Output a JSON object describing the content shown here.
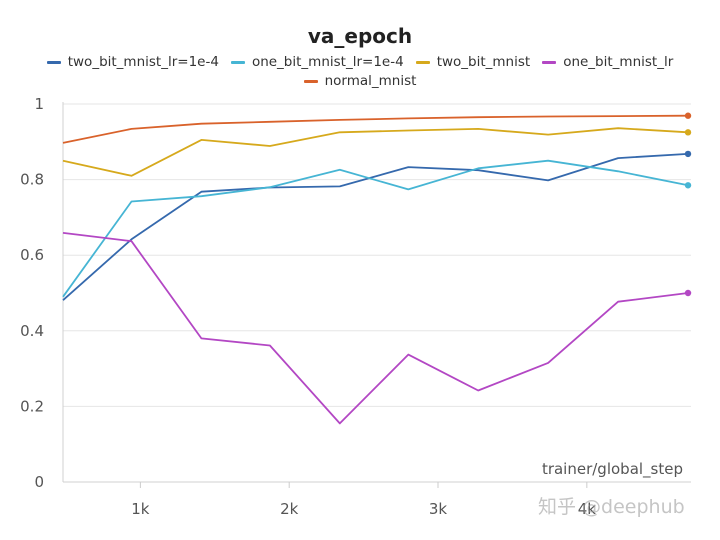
{
  "chart_data": {
    "type": "line",
    "title": "va_epoch",
    "xlabel": "trainer/global_step",
    "ylabel": "",
    "xlim": [
      480,
      4700
    ],
    "ylim": [
      0,
      1
    ],
    "x_tick_values": [
      1000,
      2000,
      3000,
      4000
    ],
    "x_tick_labels": [
      "1k",
      "2k",
      "3k",
      "4k"
    ],
    "y_tick_values": [
      0,
      0.2,
      0.4,
      0.6,
      0.8,
      1
    ],
    "y_tick_labels": [
      "0",
      "0.2",
      "0.4",
      "0.6",
      "0.8",
      "1"
    ],
    "grid": "horizontal",
    "legend_position": "top",
    "x": [
      480,
      940,
      1410,
      1870,
      2340,
      2800,
      3270,
      3740,
      4210,
      4680
    ],
    "series": [
      {
        "name": "two_bit_mnist_lr=1e-4",
        "color": "#3569ad",
        "values": [
          0.481,
          0.642,
          0.768,
          0.779,
          0.782,
          0.833,
          0.825,
          0.798,
          0.857,
          0.868
        ]
      },
      {
        "name": "one_bit_mnist_lr=1e-4",
        "color": "#46b5d4",
        "values": [
          0.49,
          0.742,
          0.756,
          0.78,
          0.826,
          0.774,
          0.83,
          0.85,
          0.822,
          0.785
        ]
      },
      {
        "name": "two_bit_mnist",
        "color": "#d6a91c",
        "values": [
          0.85,
          0.81,
          0.905,
          0.889,
          0.925,
          0.93,
          0.934,
          0.919,
          0.936,
          0.925
        ]
      },
      {
        "name": "one_bit_mnist_lr",
        "color": "#b347c4",
        "values": [
          0.659,
          0.637,
          0.38,
          0.361,
          0.155,
          0.337,
          0.242,
          0.315,
          0.477,
          0.5
        ]
      },
      {
        "name": "normal_mnist",
        "color": "#d9622b",
        "values": [
          0.897,
          0.934,
          0.948,
          0.953,
          0.958,
          0.962,
          0.965,
          0.967,
          0.968,
          0.969
        ]
      }
    ]
  },
  "watermark": "知乎 @deephub"
}
